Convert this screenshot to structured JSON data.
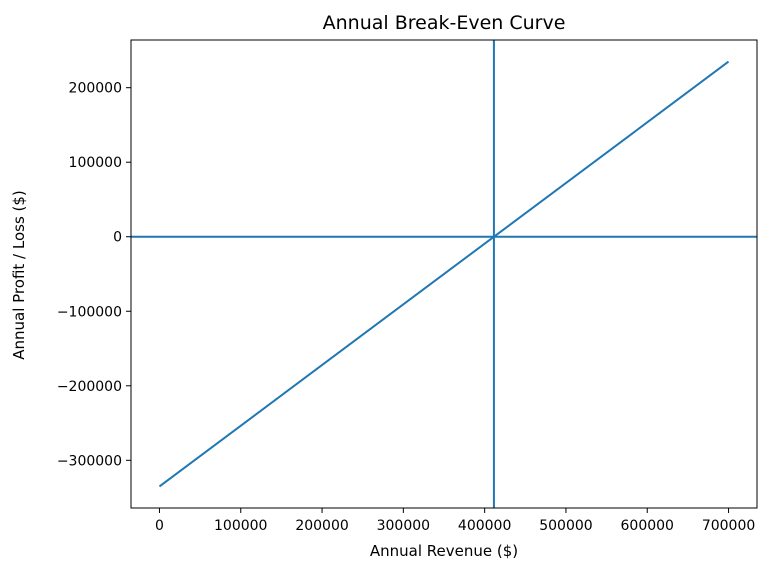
{
  "chart_data": {
    "type": "line",
    "title": "Annual Break-Even Curve",
    "xlabel": "Annual Revenue ($)",
    "ylabel": "Annual Profit / Loss ($)",
    "xlim": [
      -35000,
      735000
    ],
    "ylim": [
      -364000,
      264000
    ],
    "x_ticks": [
      0,
      100000,
      200000,
      300000,
      400000,
      500000,
      600000,
      700000
    ],
    "x_tick_labels": [
      "0",
      "100000",
      "200000",
      "300000",
      "400000",
      "500000",
      "600000",
      "700000"
    ],
    "y_ticks": [
      200000,
      100000,
      0,
      -100000,
      -200000,
      -300000
    ],
    "y_tick_labels": [
      "200000",
      "100000",
      "0",
      "−100000",
      "−200000",
      "−300000"
    ],
    "grid": false,
    "series": [
      {
        "x": [
          0,
          700000
        ],
        "y": [
          -335000,
          235000
        ]
      }
    ],
    "reference_lines": [
      {
        "orientation": "horizontal",
        "value": 0
      },
      {
        "orientation": "vertical",
        "value": 411400
      }
    ],
    "line_color": "#1f77b4"
  }
}
